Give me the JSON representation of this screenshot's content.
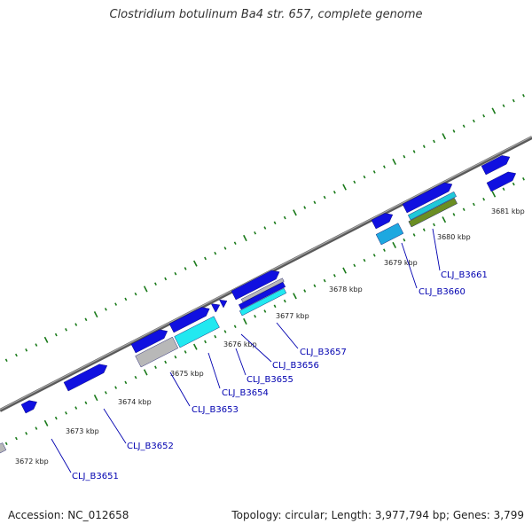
{
  "title": "Clostridium botulinum Ba4 str. 657, complete genome",
  "footer": {
    "accession": "Accession: NC_012658",
    "summary": "Topology: circular; Length: 3,977,794 bp; Genes: 3,799"
  },
  "colors": {
    "backbone": "#7a7a7a",
    "gene_blue": "#1010e0",
    "cyan": "#22e8f0",
    "gray_feature": "#b8b8b8",
    "olive": "#6b8e23",
    "tick_green": "#1a7a1a",
    "label_blue": "#0000b0"
  },
  "scale": {
    "unit": "kbp",
    "tick_labels": [
      "3672 kbp",
      "3673 kbp",
      "3674 kbp",
      "3675 kbp",
      "3676 kbp",
      "3677 kbp",
      "3678 kbp",
      "3679 kbp",
      "3680 kbp",
      "3681 kbp"
    ]
  },
  "gene_labels": [
    "CLJ_B3651",
    "CLJ_B3652",
    "CLJ_B3653",
    "CLJ_B3654",
    "CLJ_B3655",
    "CLJ_B3656",
    "CLJ_B3657",
    "CLJ_B3660",
    "CLJ_B3661"
  ]
}
